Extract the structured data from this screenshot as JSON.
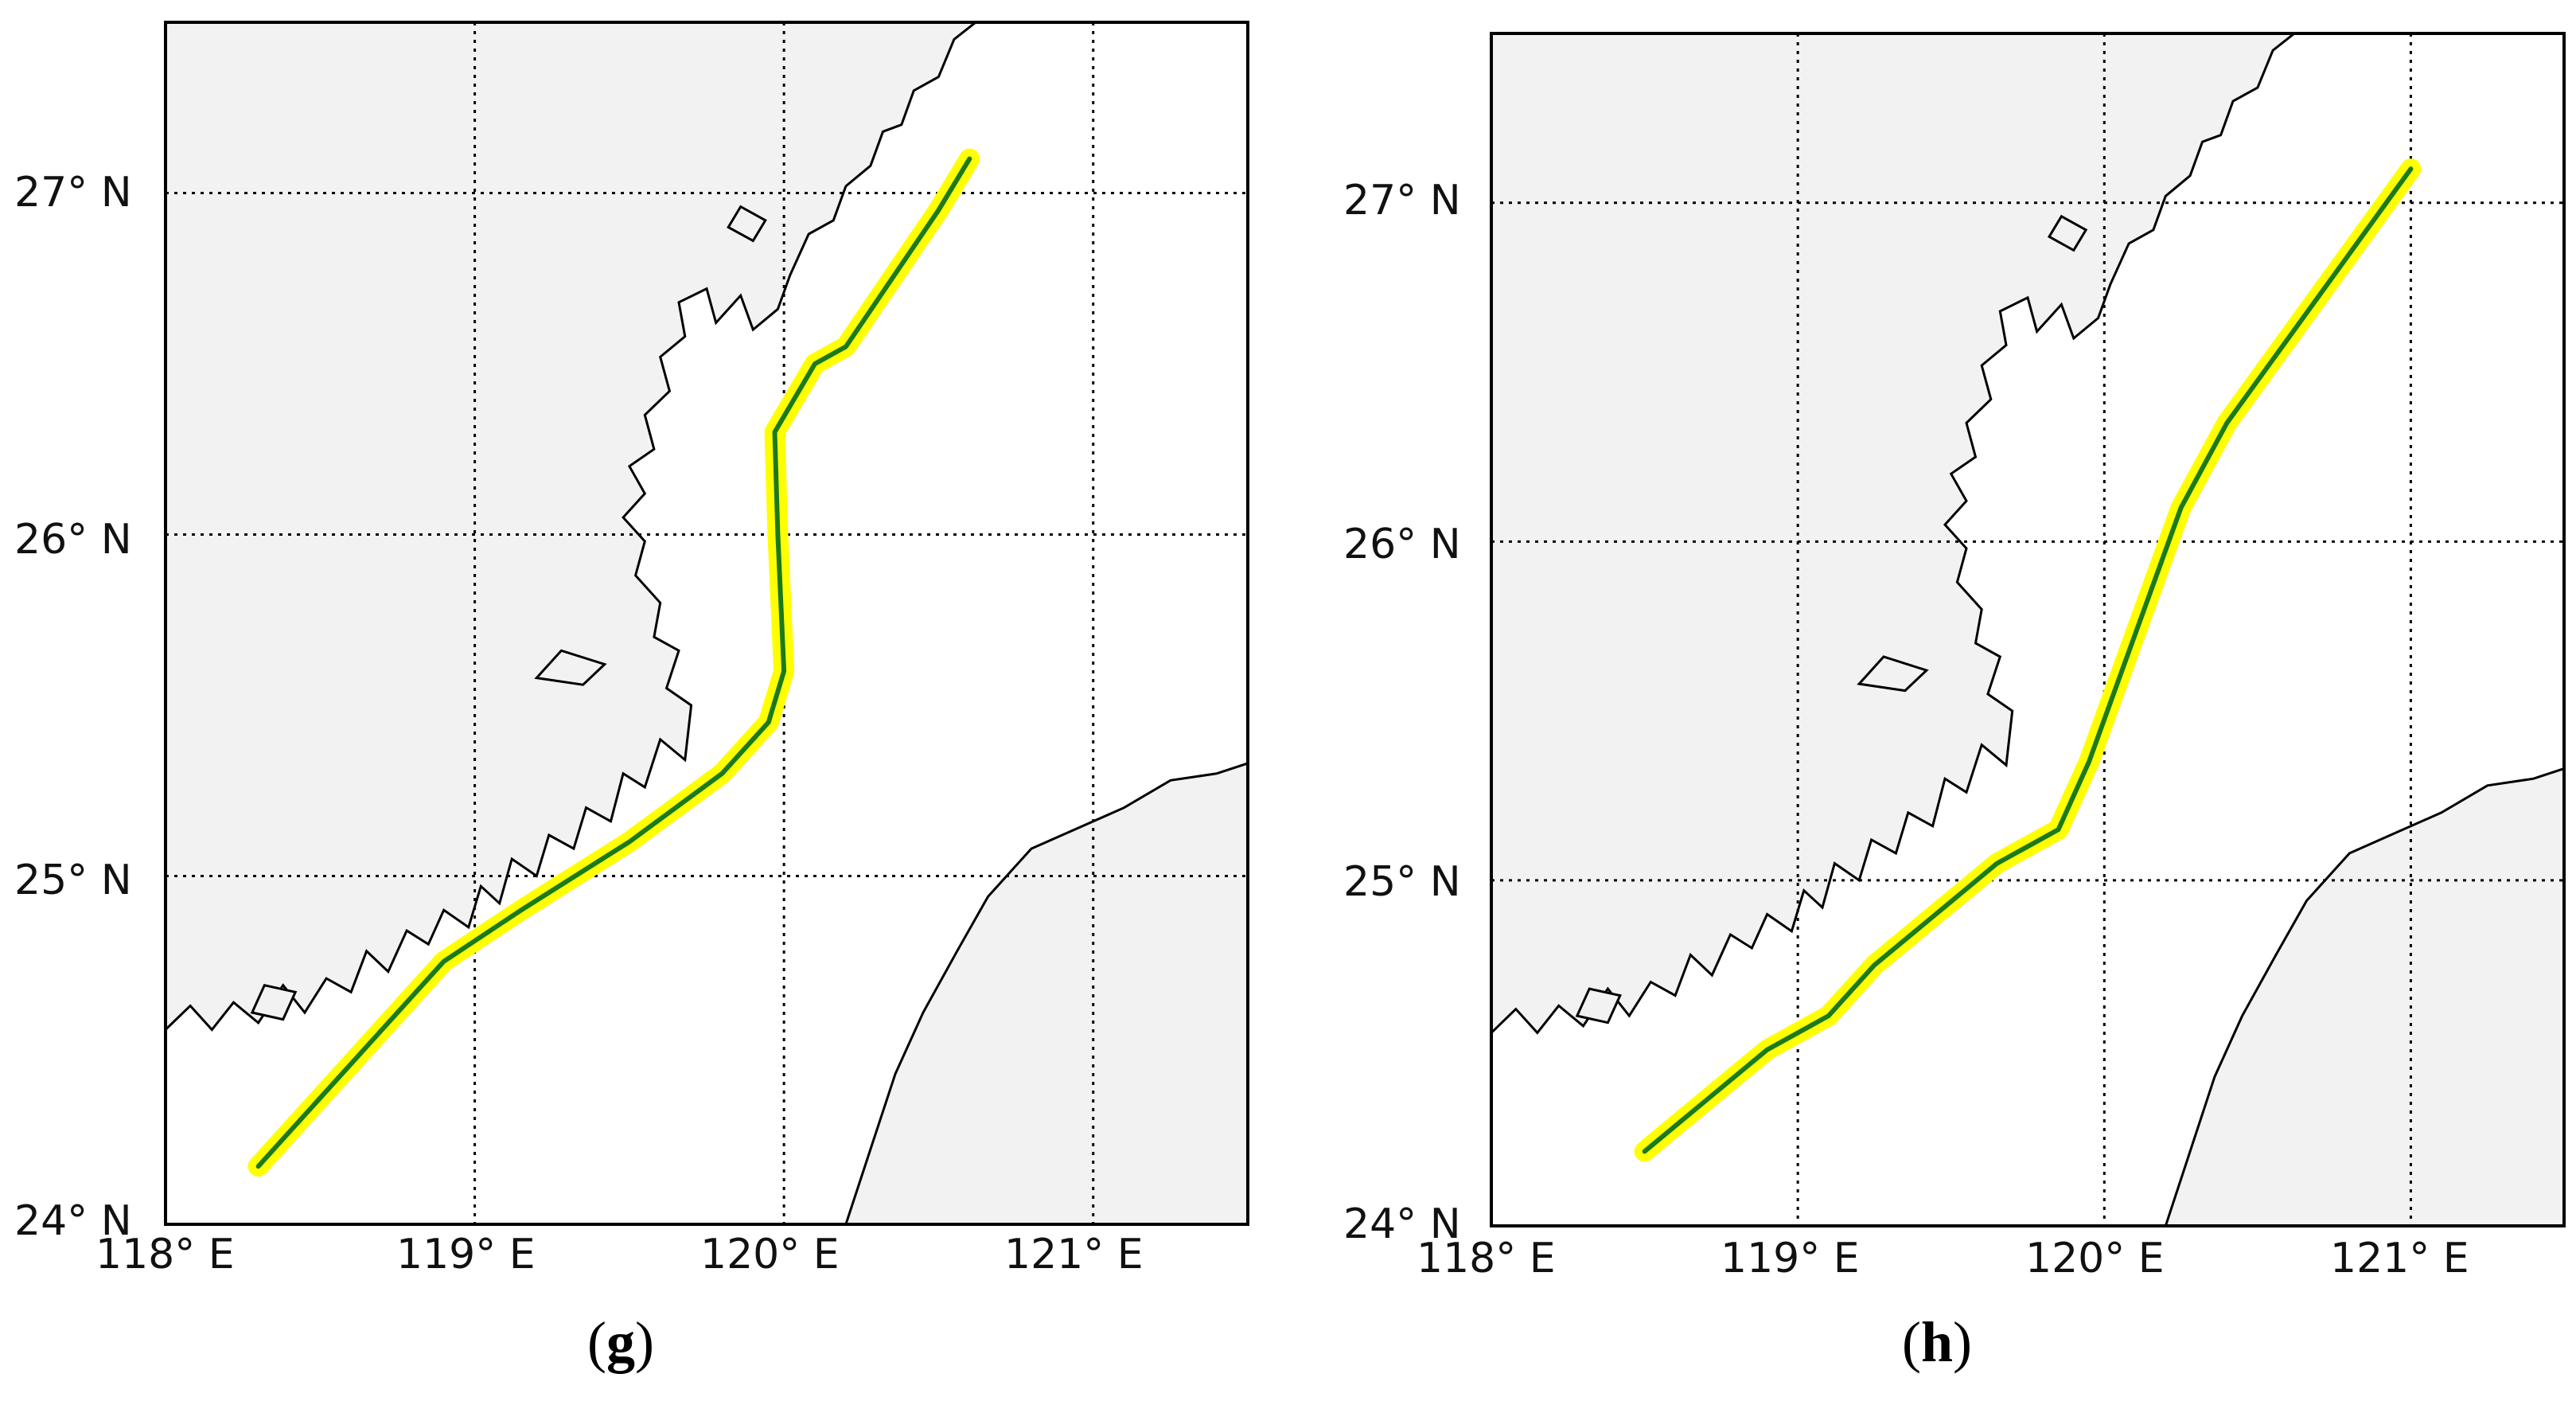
{
  "figure": {
    "panels": [
      {
        "id": "g",
        "caption": "(g)",
        "caption_letter": "g",
        "lon_ticks": [
          "118° E",
          "119° E",
          "120° E",
          "121° E"
        ],
        "lat_ticks": [
          "24° N",
          "25° N",
          "26° N",
          "27° N"
        ],
        "track": [
          [
            118.3,
            24.15
          ],
          [
            118.5,
            24.35
          ],
          [
            118.7,
            24.55
          ],
          [
            118.9,
            24.75
          ],
          [
            119.15,
            24.9
          ],
          [
            119.5,
            25.1
          ],
          [
            119.8,
            25.3
          ],
          [
            119.95,
            25.45
          ],
          [
            120.0,
            25.6
          ],
          [
            119.98,
            26.0
          ],
          [
            119.97,
            26.3
          ],
          [
            120.1,
            26.5
          ],
          [
            120.2,
            26.55
          ],
          [
            120.35,
            26.75
          ],
          [
            120.5,
            26.95
          ],
          [
            120.6,
            27.1
          ]
        ]
      },
      {
        "id": "h",
        "caption": "(h)",
        "caption_letter": "h",
        "lon_ticks": [
          "118° E",
          "119° E",
          "120° E",
          "121° E"
        ],
        "lat_ticks": [
          "24° N",
          "25° N",
          "26° N",
          "27° N"
        ],
        "track": [
          [
            118.5,
            24.2
          ],
          [
            118.7,
            24.35
          ],
          [
            118.9,
            24.5
          ],
          [
            119.1,
            24.6
          ],
          [
            119.25,
            24.75
          ],
          [
            119.45,
            24.9
          ],
          [
            119.65,
            25.05
          ],
          [
            119.85,
            25.15
          ],
          [
            119.95,
            25.35
          ],
          [
            120.05,
            25.6
          ],
          [
            120.15,
            25.85
          ],
          [
            120.25,
            26.1
          ],
          [
            120.4,
            26.35
          ],
          [
            120.6,
            26.6
          ],
          [
            120.8,
            26.85
          ],
          [
            121.0,
            27.1
          ]
        ]
      }
    ],
    "colors": {
      "land": "#f2f2f2",
      "sea": "#ffffff",
      "coastline": "#000000",
      "track": "#1a7a1a",
      "track_highlight": "#ffff00",
      "grid": "#000000"
    }
  }
}
